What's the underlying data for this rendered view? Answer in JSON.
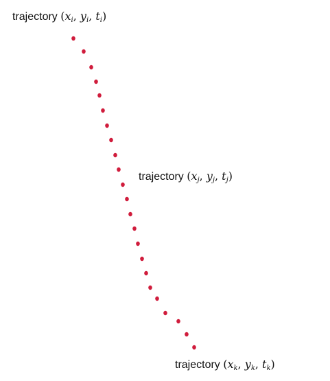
{
  "diagram": {
    "dot_color": "#d01c3c",
    "labels": [
      {
        "id": "i",
        "word": "trajectory",
        "open": "(",
        "x": "x",
        "sep1": ", ",
        "y": "y",
        "sep2": ", ",
        "t": "t",
        "sub": "i",
        "close": ")"
      },
      {
        "id": "j",
        "word": "trajectory",
        "open": "(",
        "x": "x",
        "sep1": ", ",
        "y": "y",
        "sep2": ", ",
        "t": "t",
        "sub": "j",
        "close": ")"
      },
      {
        "id": "k",
        "word": "trajectory",
        "open": "(",
        "x": "x",
        "sep1": ", ",
        "y": "y",
        "sep2": ", ",
        "t": "t",
        "sub": "k",
        "close": ")"
      }
    ]
  }
}
